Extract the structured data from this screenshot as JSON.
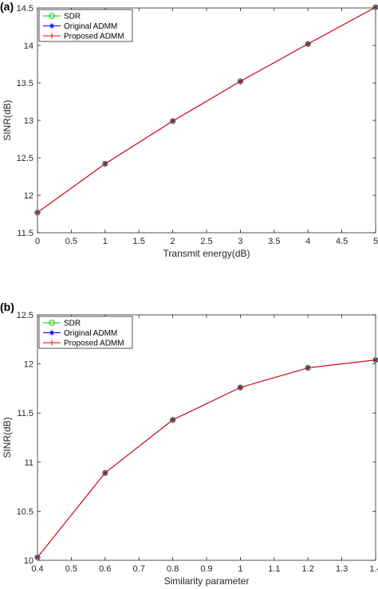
{
  "chart_data": [
    {
      "panel_label": "(a)",
      "type": "line",
      "xlabel": "Transmit energy(dB)",
      "ylabel": "SINR(dB)",
      "xlim": [
        0,
        5
      ],
      "ylim": [
        11.5,
        14.5
      ],
      "xticks": [
        "0",
        "0.5",
        "1",
        "1.5",
        "2",
        "2.5",
        "3",
        "3.5",
        "4",
        "4.5",
        "5"
      ],
      "yticks": [
        "11.5",
        "12",
        "12.5",
        "13",
        "13.5",
        "14",
        "14.5"
      ],
      "grid": false,
      "legend_position": "top-left",
      "x": [
        0,
        1,
        2,
        3,
        4,
        5
      ],
      "series": [
        {
          "name": "SDR",
          "marker": "circle",
          "color": "#00cc00",
          "values": [
            11.77,
            12.42,
            12.99,
            13.52,
            14.02,
            14.51
          ]
        },
        {
          "name": "Original ADMM",
          "marker": "asterisk",
          "color": "#0000ff",
          "values": [
            11.77,
            12.42,
            12.99,
            13.52,
            14.02,
            14.51
          ]
        },
        {
          "name": "Proposed ADMM",
          "marker": "plus",
          "color": "#ff0000",
          "values": [
            11.77,
            12.42,
            12.99,
            13.52,
            14.02,
            14.51
          ]
        }
      ]
    },
    {
      "panel_label": "(b)",
      "type": "line",
      "xlabel": "Similarity parameter",
      "ylabel": "SINR(dB)",
      "xlim": [
        0.4,
        1.4
      ],
      "ylim": [
        10,
        12.5
      ],
      "xticks": [
        "0.4",
        "0.5",
        "0.6",
        "0.7",
        "0.8",
        "0.9",
        "1",
        "1.1",
        "1.2",
        "1.3",
        "1.4"
      ],
      "yticks": [
        "10",
        "10.5",
        "11",
        "11.5",
        "12",
        "12.5"
      ],
      "grid": false,
      "legend_position": "top-left",
      "x": [
        0.4,
        0.6,
        0.8,
        1.0,
        1.2,
        1.4
      ],
      "series": [
        {
          "name": "SDR",
          "marker": "circle",
          "color": "#00cc00",
          "values": [
            10.03,
            10.89,
            11.43,
            11.76,
            11.96,
            12.04
          ]
        },
        {
          "name": "Original ADMM",
          "marker": "asterisk",
          "color": "#0000ff",
          "values": [
            10.03,
            10.89,
            11.43,
            11.76,
            11.96,
            12.04
          ]
        },
        {
          "name": "Proposed ADMM",
          "marker": "plus",
          "color": "#ff0000",
          "values": [
            10.03,
            10.89,
            11.43,
            11.76,
            11.96,
            12.04
          ]
        }
      ]
    }
  ]
}
